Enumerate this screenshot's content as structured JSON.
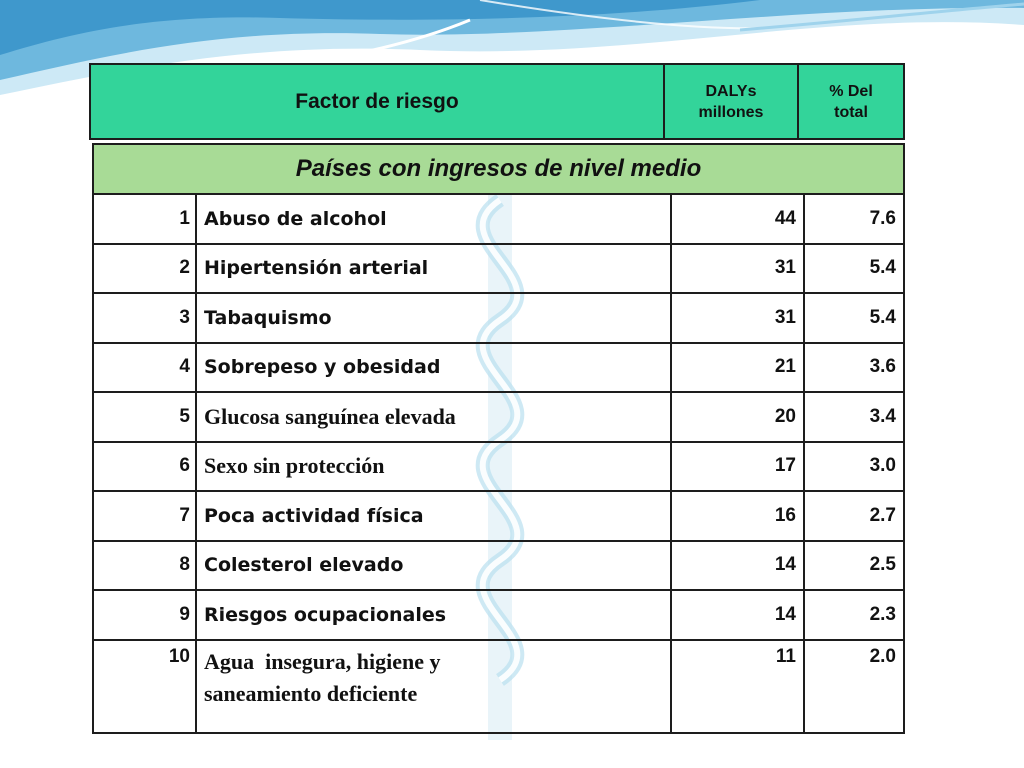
{
  "header": {
    "factor_label": "Factor de riesgo",
    "dalys_line1": "DALYs",
    "dalys_line2": "millones",
    "pct_line1": "% Del",
    "pct_line2": "total"
  },
  "section_title": "Países con ingresos de nivel medio",
  "rows": [
    {
      "rank": "1",
      "factor": "Abuso de alcohol",
      "dalys": "44",
      "pct": "7.6"
    },
    {
      "rank": "2",
      "factor": "Hipertensión arterial",
      "dalys": "31",
      "pct": "5.4"
    },
    {
      "rank": "3",
      "factor": "Tabaquismo",
      "dalys": "31",
      "pct": "5.4"
    },
    {
      "rank": "4",
      "factor": "Sobrepeso y obesidad",
      "dalys": "21",
      "pct": "3.6"
    },
    {
      "rank": "5",
      "factor": "Glucosa sanguínea elevada",
      "dalys": "20",
      "pct": "3.4"
    },
    {
      "rank": "6",
      "factor": "Sexo sin protección",
      "dalys": "17",
      "pct": "3.0"
    },
    {
      "rank": "7",
      "factor": "Poca actividad física",
      "dalys": "16",
      "pct": "2.7"
    },
    {
      "rank": "8",
      "factor": "Colesterol elevado",
      "dalys": "14",
      "pct": "2.5"
    },
    {
      "rank": "9",
      "factor": "Riesgos ocupacionales",
      "dalys": "14",
      "pct": "2.3"
    },
    {
      "rank": "10",
      "factor_line1": "Agua  insegura, higiene y",
      "factor_line2": "saneamiento deficiente",
      "dalys": "11",
      "pct": "2.0"
    }
  ],
  "colors": {
    "header_bg": "#33d49a",
    "section_bg": "#a8db96",
    "wave_blue": "#4fa6d3",
    "wave_light": "#bfe3f2",
    "emblem": "#b9dff0"
  },
  "icons": [
    "wave-decoration",
    "caduceus-emblem-icon"
  ]
}
